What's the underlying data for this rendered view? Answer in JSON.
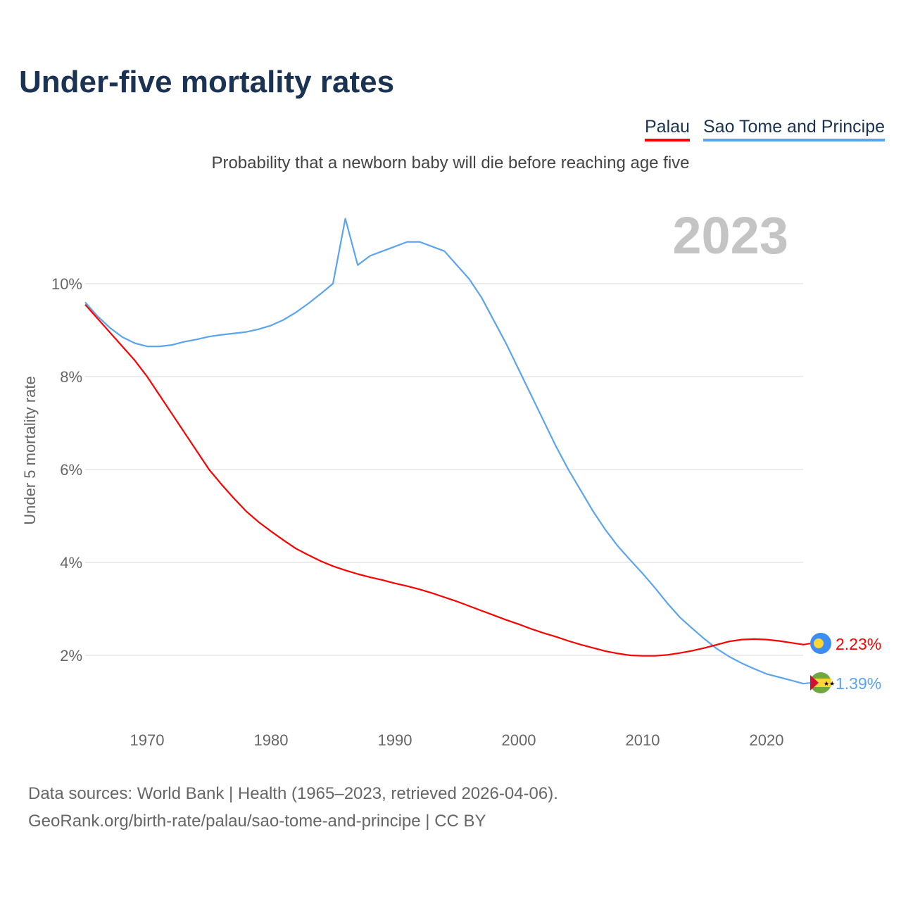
{
  "title": "Under-five mortality rates",
  "subtitle": "Probability that a newborn baby will die before reaching age five",
  "source_line1": "Data sources: World Bank | Health (1965–2023, retrieved 2026-04-06).",
  "source_line2": "GeoRank.org/birth-rate/palau/sao-tome-and-principe | CC BY",
  "chart_data": {
    "type": "line",
    "title": "Under-five mortality rates",
    "ylabel": "Under 5 mortality rate",
    "xlabel": "",
    "year_label": "2023",
    "xlim": [
      1965,
      2023
    ],
    "ylim": [
      0,
      11.5
    ],
    "x_ticks": [
      1970,
      1980,
      1990,
      2000,
      2010,
      2020
    ],
    "y_ticks": [
      2,
      4,
      6,
      8,
      10
    ],
    "y_tick_labels": [
      "2%",
      "4%",
      "6%",
      "8%",
      "10%"
    ],
    "grid": true,
    "legend_position": "top-right",
    "x": [
      1965,
      1966,
      1967,
      1968,
      1969,
      1970,
      1971,
      1972,
      1973,
      1974,
      1975,
      1976,
      1977,
      1978,
      1979,
      1980,
      1981,
      1982,
      1983,
      1984,
      1985,
      1986,
      1987,
      1988,
      1989,
      1990,
      1991,
      1992,
      1993,
      1994,
      1995,
      1996,
      1997,
      1998,
      1999,
      2000,
      2001,
      2002,
      2003,
      2004,
      2005,
      2006,
      2007,
      2008,
      2009,
      2010,
      2011,
      2012,
      2013,
      2014,
      2015,
      2016,
      2017,
      2018,
      2019,
      2020,
      2021,
      2022,
      2023
    ],
    "series": [
      {
        "name": "Palau",
        "color": "#ff0000",
        "end_label": "2.23%",
        "flag": "palau-flag",
        "values": [
          9.55,
          9.25,
          8.95,
          8.65,
          8.35,
          8.0,
          7.6,
          7.2,
          6.8,
          6.4,
          6.0,
          5.68,
          5.38,
          5.1,
          4.87,
          4.67,
          4.48,
          4.3,
          4.16,
          4.03,
          3.92,
          3.83,
          3.75,
          3.68,
          3.62,
          3.55,
          3.49,
          3.42,
          3.34,
          3.25,
          3.16,
          3.06,
          2.96,
          2.86,
          2.76,
          2.67,
          2.57,
          2.48,
          2.4,
          2.31,
          2.23,
          2.16,
          2.09,
          2.04,
          2.0,
          1.99,
          1.99,
          2.01,
          2.05,
          2.1,
          2.16,
          2.23,
          2.3,
          2.34,
          2.35,
          2.34,
          2.31,
          2.27,
          2.23
        ]
      },
      {
        "name": "Sao Tome and Principe",
        "color": "#5ba4ee",
        "end_label": "1.39%",
        "flag": "sao-tome-flag",
        "values": [
          9.6,
          9.3,
          9.05,
          8.85,
          8.72,
          8.65,
          8.65,
          8.68,
          8.75,
          8.8,
          8.86,
          8.9,
          8.93,
          8.96,
          9.02,
          9.1,
          9.22,
          9.38,
          9.57,
          9.78,
          10.0,
          11.4,
          10.4,
          10.6,
          10.7,
          10.8,
          10.9,
          10.9,
          10.8,
          10.7,
          10.4,
          10.1,
          9.7,
          9.2,
          8.7,
          8.15,
          7.6,
          7.05,
          6.5,
          6.0,
          5.55,
          5.1,
          4.7,
          4.35,
          4.05,
          3.76,
          3.45,
          3.12,
          2.82,
          2.58,
          2.35,
          2.14,
          1.97,
          1.83,
          1.71,
          1.6,
          1.53,
          1.46,
          1.39
        ]
      }
    ]
  }
}
